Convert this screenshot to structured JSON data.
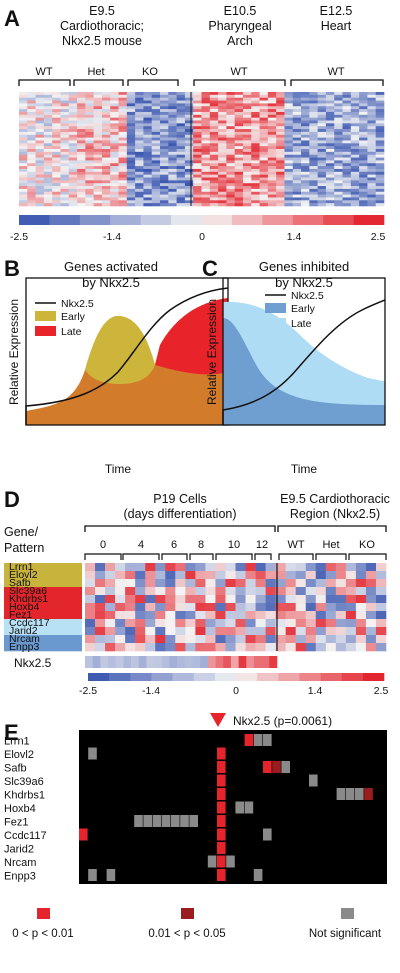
{
  "panels": {
    "A": {
      "letter": "A",
      "groups": [
        {
          "line1": "E9.5",
          "line2": "Cardiothoracic;",
          "line3": "Nkx2.5 mouse"
        },
        {
          "line1": "E10.5",
          "line2": "Pharyngeal",
          "line3": "Arch"
        },
        {
          "line1": "E12.5",
          "line2": "Heart",
          "line3": ""
        }
      ],
      "genotypes": [
        "WT",
        "Het",
        "KO",
        "WT",
        "WT"
      ],
      "colorbar_ticks": [
        "-2.5",
        "-1.4",
        "0",
        "1.4",
        "2.5"
      ],
      "colorbar_range": [
        -2.5,
        2.5
      ],
      "colors": {
        "neg": "#3a56b0",
        "zero": "#f4f4f4",
        "pos": "#e3202a"
      }
    },
    "B": {
      "letter": "B",
      "title1": "Genes activated",
      "title2": "by Nkx2.5",
      "ylabel": "Relative Expression",
      "xlabel": "Time",
      "legend": [
        "Nkx2.5",
        "Early",
        "Late"
      ],
      "colors": {
        "early": "#cdb53c",
        "late": "#e8242a",
        "overlap": "#d27c2b"
      }
    },
    "C": {
      "letter": "C",
      "title1": "Genes inhibited",
      "title2": "by Nkx2.5",
      "ylabel": "Relative Expression",
      "xlabel": "Time",
      "legend": [
        "Nkx2.5",
        "Early",
        "Late"
      ],
      "colors": {
        "early": "#6f9fd0",
        "late": "#aedcf5"
      }
    },
    "D": {
      "letter": "D",
      "header_p19_1": "P19 Cells",
      "header_p19_2": "(days differentiation)",
      "header_e95_1": "E9.5 Cardiothoracic",
      "header_e95_2": "Region (Nkx2.5)",
      "gene_header_1": "Gene/",
      "gene_header_2": "Pattern",
      "days": [
        "0",
        "4",
        "6",
        "8",
        "10",
        "12"
      ],
      "genotypes": [
        "WT",
        "Het",
        "KO"
      ],
      "genes": [
        {
          "name": "Lrrn1",
          "pattern": "#c8b43c"
        },
        {
          "name": "Elovl2",
          "pattern": "#c8b43c"
        },
        {
          "name": "Safb",
          "pattern": "#c8b43c"
        },
        {
          "name": "Slc39a6",
          "pattern": "#e3262c"
        },
        {
          "name": "Khdrbs1",
          "pattern": "#e3262c"
        },
        {
          "name": "Hoxb4",
          "pattern": "#e3262c"
        },
        {
          "name": "Fez1",
          "pattern": "#e3262c"
        },
        {
          "name": "Ccdc117",
          "pattern": "#b9e1f5"
        },
        {
          "name": "Jarid2",
          "pattern": "#b9e1f5"
        },
        {
          "name": "Nrcam",
          "pattern": "#6a99cf"
        },
        {
          "name": "Enpp3",
          "pattern": "#6a99cf"
        }
      ],
      "nkx_label": "Nkx2.5",
      "colorbar_ticks": [
        "-2.5",
        "-1.4",
        "0",
        "1.4",
        "2.5"
      ]
    },
    "E": {
      "letter": "E",
      "annotation": "Nkx2.5 (p=0.0061)",
      "genes": [
        "Lrrn1",
        "Elovl2",
        "Safb",
        "Slc39a6",
        "Khdrbs1",
        "Hoxb4",
        "Fez1",
        "Ccdc117",
        "Jarid2",
        "Nrcam",
        "Enpp3"
      ],
      "legend": [
        {
          "label": "0 < p < 0.01",
          "color": "#e5252b"
        },
        {
          "label": "0.01 < p < 0.05",
          "color": "#9b1c1f"
        },
        {
          "label": "Not significant",
          "color": "#8a8a8a"
        }
      ]
    }
  }
}
